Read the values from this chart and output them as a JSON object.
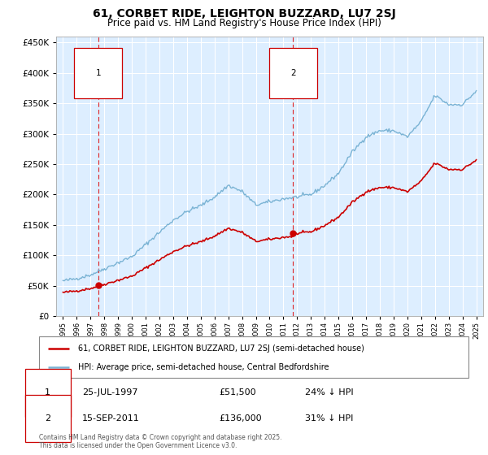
{
  "title": "61, CORBET RIDE, LEIGHTON BUZZARD, LU7 2SJ",
  "subtitle": "Price paid vs. HM Land Registry's House Price Index (HPI)",
  "legend_line1": "61, CORBET RIDE, LEIGHTON BUZZARD, LU7 2SJ (semi-detached house)",
  "legend_line2": "HPI: Average price, semi-detached house, Central Bedfordshire",
  "annotation1_date": "25-JUL-1997",
  "annotation1_price": "£51,500",
  "annotation1_hpi": "24% ↓ HPI",
  "annotation2_date": "15-SEP-2011",
  "annotation2_price": "£136,000",
  "annotation2_hpi": "31% ↓ HPI",
  "footer": "Contains HM Land Registry data © Crown copyright and database right 2025.\nThis data is licensed under the Open Government Licence v3.0.",
  "ylim": [
    0,
    460000
  ],
  "yticks": [
    0,
    50000,
    100000,
    150000,
    200000,
    250000,
    300000,
    350000,
    400000,
    450000
  ],
  "hpi_color": "#7ab3d4",
  "price_color": "#cc0000",
  "bg_color": "#ddeeff",
  "grid_color": "#ffffff",
  "purchase1_year": 1997.56,
  "purchase1_price": 51500,
  "purchase2_year": 2011.71,
  "purchase2_price": 136000,
  "hpi_key_x": [
    1995,
    1996,
    1997,
    1998,
    1999,
    2000,
    2001,
    2002,
    2003,
    2004,
    2005,
    2006,
    2007,
    2008,
    2009,
    2010,
    2011,
    2012,
    2013,
    2014,
    2015,
    2016,
    2017,
    2018,
    2019,
    2020,
    2021,
    2022,
    2023,
    2024,
    2025
  ],
  "hpi_key_y": [
    58000,
    62000,
    68000,
    78000,
    88000,
    98000,
    118000,
    138000,
    158000,
    172000,
    182000,
    196000,
    215000,
    205000,
    183000,
    188000,
    193000,
    196000,
    200000,
    215000,
    235000,
    270000,
    295000,
    305000,
    305000,
    295000,
    320000,
    363000,
    348000,
    348000,
    370000
  ]
}
